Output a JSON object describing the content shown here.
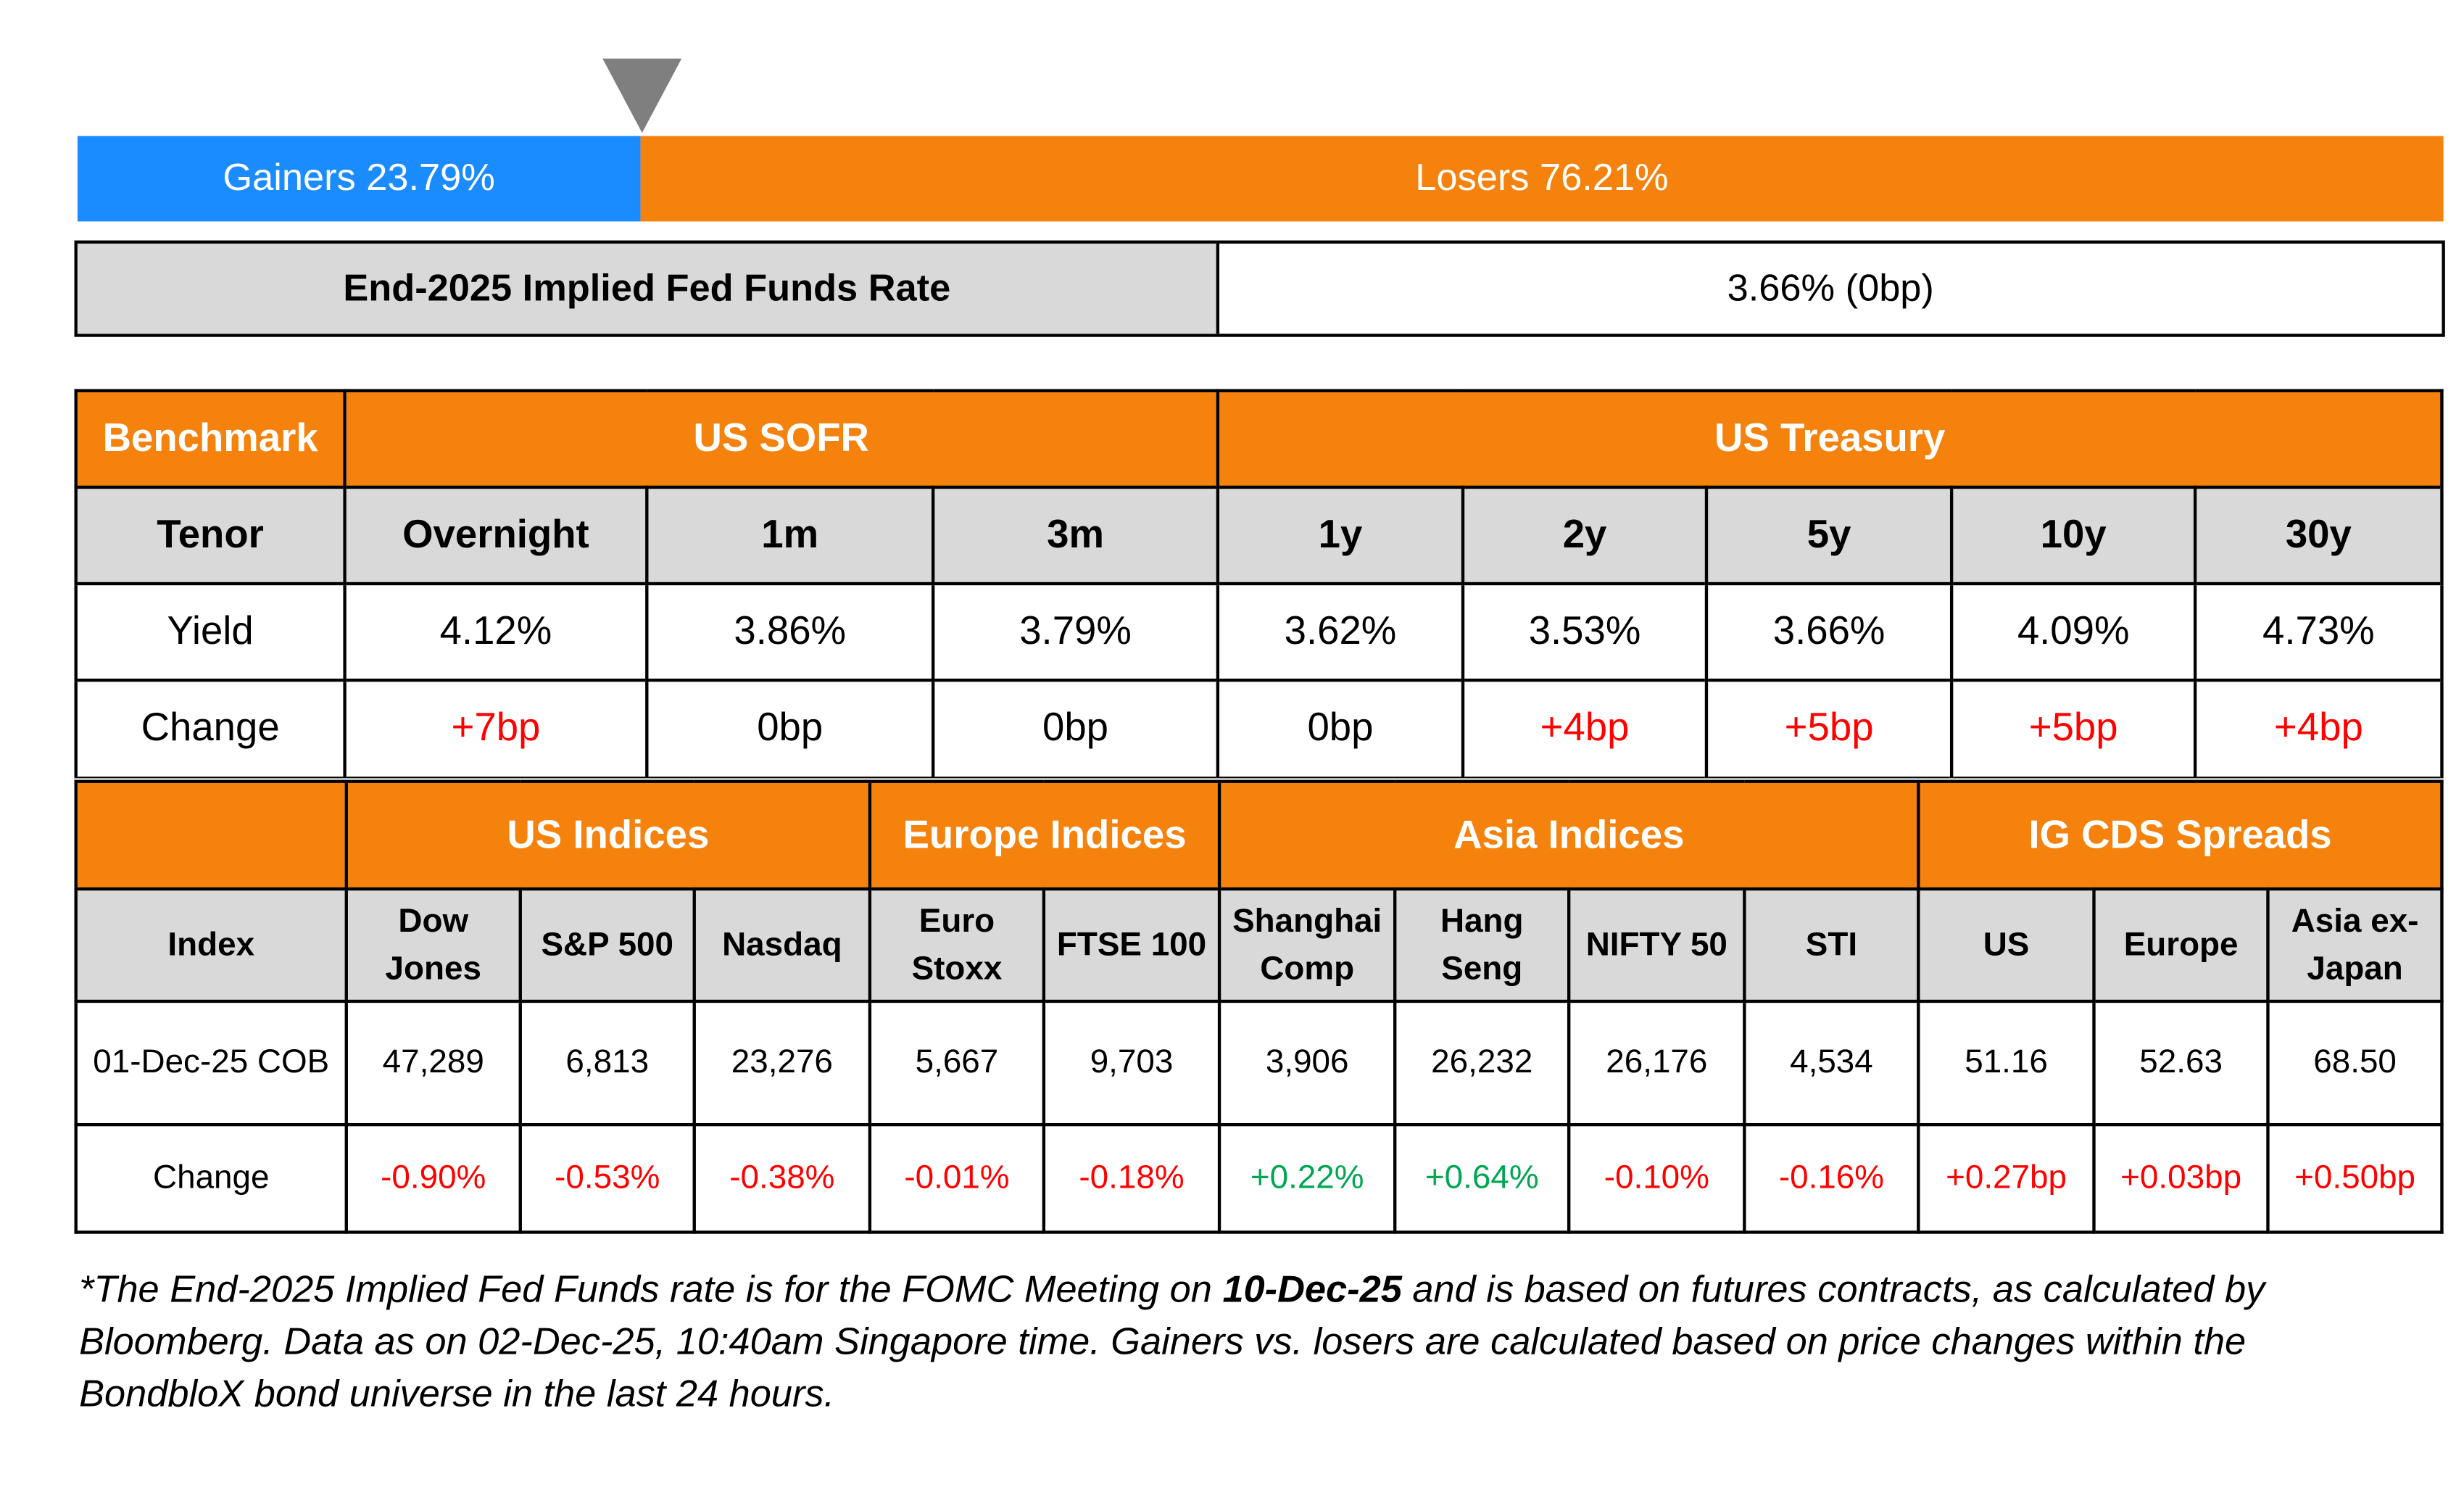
{
  "gainers_losers": {
    "gainers_label": "Gainers 23.79%",
    "losers_label": "Losers 76.21%",
    "gainers_fraction": 0.2379,
    "colors": {
      "gainers": "#1a8cff",
      "losers": "#f5820d",
      "marker": "#7f7f7f"
    }
  },
  "fed_funds": {
    "label": "End-2025 Implied Fed Funds Rate",
    "value": "3.66% (0bp)"
  },
  "rates_table": {
    "benchmark_label": "Benchmark",
    "group_sofr": "US SOFR",
    "group_treasury": "US Treasury",
    "tenor_label": "Tenor",
    "tenors": [
      "Overnight",
      "1m",
      "3m",
      "1y",
      "2y",
      "5y",
      "10y",
      "30y"
    ],
    "yield_label": "Yield",
    "yields": [
      "4.12%",
      "3.86%",
      "3.79%",
      "3.62%",
      "3.53%",
      "3.66%",
      "4.09%",
      "4.73%"
    ],
    "change_label": "Change",
    "changes": [
      "+7bp",
      "0bp",
      "0bp",
      "0bp",
      "+4bp",
      "+5bp",
      "+5bp",
      "+4bp"
    ]
  },
  "indices_table": {
    "groups": [
      "US Indices",
      "Europe Indices",
      "Asia Indices",
      "IG CDS Spreads"
    ],
    "index_label": "Index",
    "names": [
      [
        "Dow",
        "Jones"
      ],
      [
        "S&P 500"
      ],
      [
        "Nasdaq"
      ],
      [
        "Euro",
        "Stoxx"
      ],
      [
        "FTSE 100"
      ],
      [
        "Shanghai",
        "Comp"
      ],
      [
        "Hang",
        "Seng"
      ],
      [
        "NIFTY 50"
      ],
      [
        "STI"
      ],
      [
        "US"
      ],
      [
        "Europe"
      ],
      [
        "Asia ex-",
        "Japan"
      ]
    ],
    "date_label": "01-Dec-25 COB",
    "values": [
      "47,289",
      "6,813",
      "23,276",
      "5,667",
      "9,703",
      "3,906",
      "26,232",
      "26,176",
      "4,534",
      "51.16",
      "52.63",
      "68.50"
    ],
    "change_label": "Change",
    "changes": [
      "-0.90%",
      "-0.53%",
      "-0.38%",
      "-0.01%",
      "-0.18%",
      "+0.22%",
      "+0.64%",
      "-0.10%",
      "-0.16%",
      "+0.27bp",
      "+0.03bp",
      "+0.50bp"
    ]
  },
  "footnote": {
    "part1": "*The End-2025 Implied Fed Funds rate is for the FOMC Meeting on ",
    "bold_date": "10-Dec-25",
    "part2": " and is based on futures contracts, as calculated by Bloomberg. Data as on 02-Dec-25, 10:40am Singapore time. Gainers vs. losers are calculated based on price changes within the BondbloX bond universe in the last 24 hours."
  },
  "colors": {
    "orange": "#f5820d",
    "grey": "#d9d9d9",
    "positive_red": "#ff0000",
    "positive_green": "#00a651",
    "negative_red": "#ff0000"
  }
}
